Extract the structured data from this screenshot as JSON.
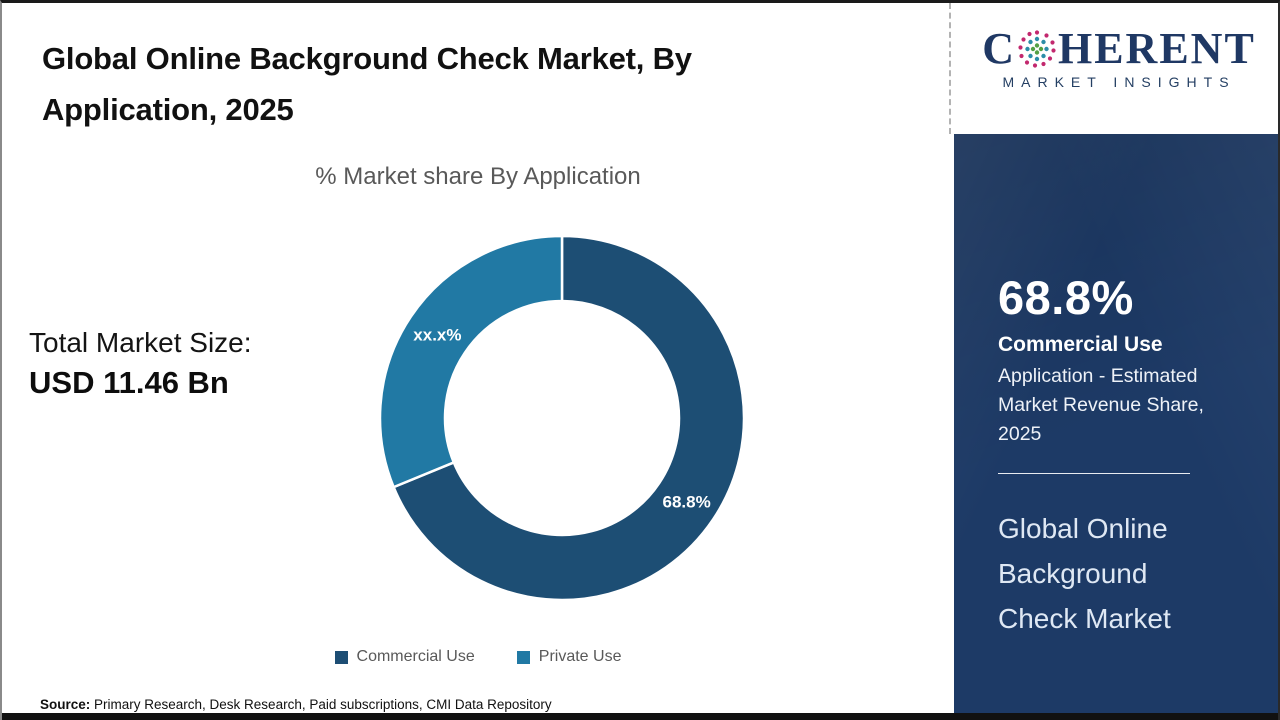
{
  "header": {
    "title": "Global Online Background Check Market, By Application, 2025"
  },
  "chart_data": {
    "type": "pie",
    "donut": true,
    "title": "% Market share By Application",
    "start_angle": "top",
    "direction": "clockwise",
    "series": [
      {
        "name": "Commercial Use",
        "value": 68.8,
        "label": "68.8%",
        "color": "#1d4e74"
      },
      {
        "name": "Private Use",
        "value": 31.2,
        "label": "xx.x%",
        "color": "#2179a4"
      }
    ],
    "legend_position": "bottom"
  },
  "stats": {
    "total_label": "Total Market Size:",
    "total_value": "USD 11.46 Bn"
  },
  "logo": {
    "brand_prefix": "C",
    "brand_suffix": "HERENT",
    "brand_sub": "MARKET INSIGHTS"
  },
  "sidebar": {
    "stat_value": "68.8%",
    "stat_title": "Commercial Use",
    "stat_desc": "Application - Estimated Market Revenue Share, 2025",
    "market_name": "Global Online Background Check Market"
  },
  "footer": {
    "source_label": "Source:",
    "source_text": " Primary Research, Desk Research, Paid subscriptions, CMI Data Repository"
  },
  "colors": {
    "commercial": "#1d4e74",
    "private": "#2179a4",
    "sidebar_bg": "#1d3a66",
    "logo_navy": "#1f3864",
    "subtitle_gray": "#595959"
  }
}
